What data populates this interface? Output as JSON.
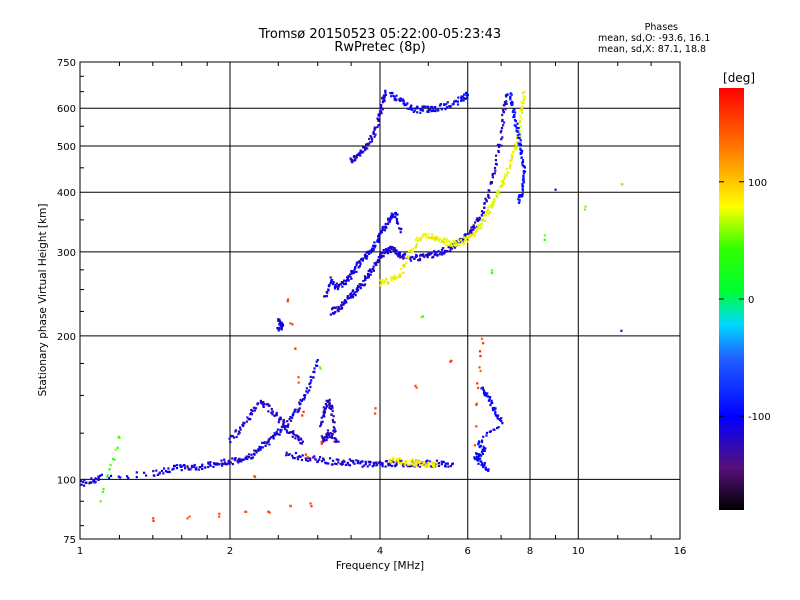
{
  "header": {
    "title_line1": "Tromsø 20150523 05:22:00-05:23:43",
    "title_line2": "RwPretec (8p)"
  },
  "phase_info": {
    "label": "Phases",
    "line_o": "mean, sd,O: -93.6, 16.1",
    "line_x": "mean, sd,X:  87.1, 18.8"
  },
  "colorbar": {
    "unit_label": "deg",
    "ticks": [
      {
        "value": 100,
        "label": "100"
      },
      {
        "value": 0,
        "label": "0"
      },
      {
        "value": -100,
        "label": "-100"
      }
    ],
    "range": [
      -180,
      180
    ]
  },
  "chart_data": {
    "type": "scatter",
    "title": "Tromsø 20150523 05:22:00-05:23:43",
    "subtitle": "RwPretec (8p)",
    "xlabel": "Frequency [MHz]",
    "ylabel": "Stationary phase Virtual Height [km]",
    "xscale": "log",
    "yscale": "log",
    "xlim": [
      1,
      16
    ],
    "ylim": [
      75,
      750
    ],
    "xticks": [
      1,
      2,
      4,
      6,
      8,
      10,
      16
    ],
    "yticks": [
      75,
      100,
      200,
      300,
      400,
      500,
      600,
      750
    ],
    "grid": true,
    "colormap_range_deg": [
      -180,
      180
    ],
    "traces": [
      {
        "name": "",
        "phase": -110,
        "points": [
          [
            1.0,
            98
          ],
          [
            1.05,
            99
          ],
          [
            1.1,
            101
          ],
          [
            1.4,
            103
          ],
          [
            1.5,
            105
          ],
          [
            1.6,
            106
          ],
          [
            1.7,
            106
          ],
          [
            1.8,
            107
          ],
          [
            1.9,
            108
          ],
          [
            2.0,
            109
          ],
          [
            2.1,
            110
          ],
          [
            2.2,
            112
          ],
          [
            2.3,
            116
          ],
          [
            2.4,
            121
          ],
          [
            2.5,
            126
          ],
          [
            2.6,
            131
          ],
          [
            2.7,
            138
          ],
          [
            2.8,
            147
          ],
          [
            2.9,
            160
          ],
          [
            3.0,
            178
          ]
        ]
      },
      {
        "name": "",
        "phase": -115,
        "points": [
          [
            2.0,
            121
          ],
          [
            2.1,
            128
          ],
          [
            2.2,
            137
          ],
          [
            2.3,
            145
          ],
          [
            2.4,
            141
          ],
          [
            2.5,
            135
          ],
          [
            2.6,
            128
          ],
          [
            2.7,
            123
          ],
          [
            2.8,
            120
          ]
        ]
      },
      {
        "name": "",
        "phase": -120,
        "points": [
          [
            3.05,
            130
          ],
          [
            3.1,
            140
          ],
          [
            3.15,
            146
          ],
          [
            3.2,
            140
          ],
          [
            3.25,
            126
          ],
          [
            3.05,
            121
          ],
          [
            3.15,
            125
          ],
          [
            3.3,
            120
          ]
        ]
      },
      {
        "name": "",
        "phase": -115,
        "points": [
          [
            2.6,
            113
          ],
          [
            2.8,
            111
          ],
          [
            3.0,
            110
          ],
          [
            3.2,
            109
          ],
          [
            3.4,
            109
          ],
          [
            3.6,
            108
          ],
          [
            3.8,
            108
          ],
          [
            4.0,
            108
          ],
          [
            4.2,
            108
          ],
          [
            4.4,
            108
          ],
          [
            4.6,
            108
          ],
          [
            4.8,
            108
          ],
          [
            5.0,
            108
          ],
          [
            5.3,
            108
          ],
          [
            5.6,
            108
          ]
        ]
      },
      {
        "name": "",
        "phase": 85,
        "points": [
          [
            4.2,
            110
          ],
          [
            4.4,
            109
          ],
          [
            4.6,
            109
          ],
          [
            4.8,
            108
          ],
          [
            5.0,
            107
          ],
          [
            5.2,
            107
          ]
        ]
      },
      {
        "name": "",
        "phase": -115,
        "points": [
          [
            3.2,
            225
          ],
          [
            3.3,
            228
          ],
          [
            3.4,
            235
          ],
          [
            3.5,
            242
          ],
          [
            3.6,
            250
          ],
          [
            3.7,
            258
          ],
          [
            3.8,
            268
          ],
          [
            3.9,
            280
          ],
          [
            4.0,
            292
          ],
          [
            4.1,
            300
          ],
          [
            4.2,
            305
          ],
          [
            4.3,
            300
          ],
          [
            4.4,
            295
          ],
          [
            4.6,
            292
          ],
          [
            4.8,
            292
          ],
          [
            5.0,
            294
          ],
          [
            5.2,
            298
          ],
          [
            5.4,
            302
          ],
          [
            5.6,
            308
          ],
          [
            5.8,
            315
          ],
          [
            6.0,
            325
          ],
          [
            6.2,
            340
          ],
          [
            6.4,
            360
          ],
          [
            6.6,
            395
          ],
          [
            6.8,
            450
          ],
          [
            7.0,
            520
          ],
          [
            7.1,
            600
          ],
          [
            7.2,
            640
          ]
        ]
      },
      {
        "name": "",
        "phase": -110,
        "points": [
          [
            3.1,
            240
          ],
          [
            3.2,
            262
          ],
          [
            3.3,
            252
          ],
          [
            3.4,
            260
          ],
          [
            3.5,
            268
          ],
          [
            3.6,
            280
          ],
          [
            3.7,
            290
          ],
          [
            3.8,
            300
          ],
          [
            3.9,
            310
          ],
          [
            4.0,
            325
          ],
          [
            4.1,
            340
          ],
          [
            4.2,
            355
          ],
          [
            4.3,
            360
          ],
          [
            4.4,
            330
          ]
        ]
      },
      {
        "name": "",
        "phase": 80,
        "points": [
          [
            4.0,
            258
          ],
          [
            4.2,
            262
          ],
          [
            4.4,
            270
          ],
          [
            4.6,
            300
          ],
          [
            4.8,
            320
          ],
          [
            5.0,
            325
          ],
          [
            5.2,
            320
          ],
          [
            5.4,
            315
          ],
          [
            5.6,
            312
          ],
          [
            5.8,
            315
          ],
          [
            6.0,
            320
          ],
          [
            6.2,
            330
          ],
          [
            6.4,
            345
          ],
          [
            6.6,
            365
          ],
          [
            6.8,
            385
          ],
          [
            7.0,
            410
          ],
          [
            7.2,
            440
          ],
          [
            7.4,
            480
          ],
          [
            7.6,
            530
          ],
          [
            7.7,
            600
          ],
          [
            7.8,
            650
          ]
        ]
      },
      {
        "name": "",
        "phase": -90,
        "points": [
          [
            7.3,
            640
          ],
          [
            7.4,
            600
          ],
          [
            7.5,
            560
          ],
          [
            7.6,
            520
          ],
          [
            7.7,
            480
          ],
          [
            7.8,
            440
          ],
          [
            7.7,
            400
          ],
          [
            7.6,
            380
          ]
        ]
      },
      {
        "name": "",
        "phase": -115,
        "points": [
          [
            3.5,
            465
          ],
          [
            3.6,
            475
          ],
          [
            3.7,
            490
          ],
          [
            3.8,
            510
          ],
          [
            3.9,
            535
          ],
          [
            4.0,
            580
          ],
          [
            4.05,
            620
          ],
          [
            4.1,
            650
          ]
        ]
      },
      {
        "name": "",
        "phase": -100,
        "points": [
          [
            4.2,
            640
          ],
          [
            4.4,
            625
          ],
          [
            4.6,
            600
          ],
          [
            4.8,
            595
          ],
          [
            5.0,
            598
          ],
          [
            5.2,
            600
          ],
          [
            5.5,
            610
          ],
          [
            5.8,
            625
          ],
          [
            6.0,
            640
          ]
        ]
      },
      {
        "name": "",
        "phase": -110,
        "points": [
          [
            2.5,
            208
          ],
          [
            2.55,
            210
          ],
          [
            2.5,
            215
          ]
        ]
      },
      {
        "name": "",
        "phase": -100,
        "points": [
          [
            6.4,
            155
          ],
          [
            6.6,
            148
          ],
          [
            6.8,
            140
          ],
          [
            7.0,
            132
          ],
          [
            6.3,
            120
          ],
          [
            6.5,
            115
          ],
          [
            6.2,
            112
          ],
          [
            6.4,
            108
          ],
          [
            6.6,
            105
          ]
        ]
      },
      {
        "name": "",
        "phase": -120,
        "points": [
          [
            9.0,
            405
          ],
          [
            12.2,
            205
          ]
        ]
      },
      {
        "name": "",
        "phase": 50,
        "points": [
          [
            12.2,
            420
          ],
          [
            1.2,
            122
          ],
          [
            1.1,
            90
          ]
        ]
      },
      {
        "name": "",
        "phase": 150,
        "points": [
          [
            2.6,
            235
          ],
          [
            2.9,
            88
          ],
          [
            1.4,
            82
          ],
          [
            6.4,
            196
          ],
          [
            6.2,
            118
          ]
        ]
      }
    ]
  }
}
